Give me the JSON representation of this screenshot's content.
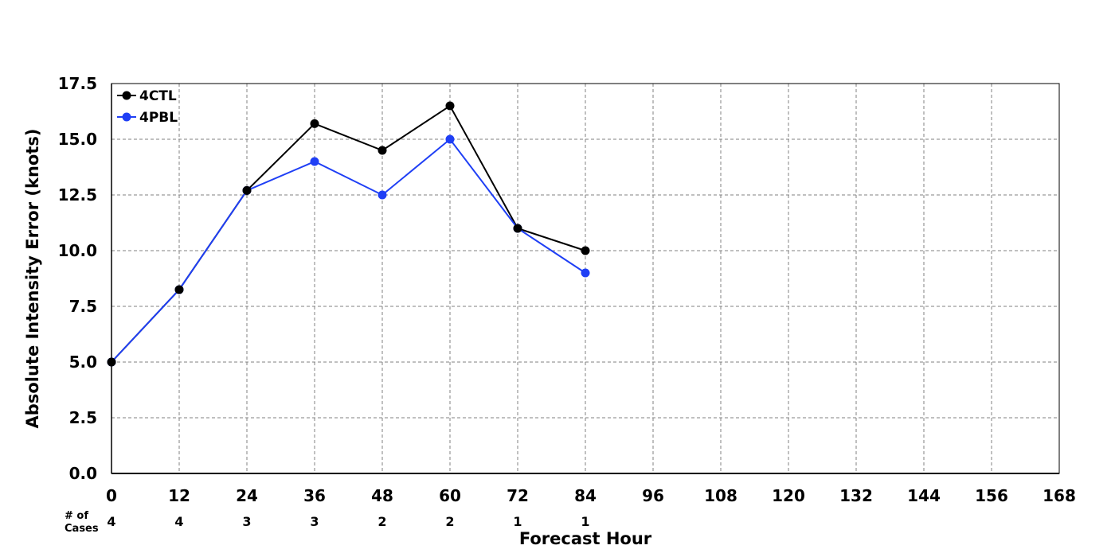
{
  "chart_data": {
    "type": "line",
    "xlabel": "Forecast Hour",
    "ylabel": "Absolute Intensity Error (knots)",
    "x_ticks": [
      0,
      12,
      24,
      36,
      48,
      60,
      72,
      84,
      96,
      108,
      120,
      132,
      144,
      156,
      168
    ],
    "y_ticks": [
      "0.0",
      "2.5",
      "5.0",
      "7.5",
      "10.0",
      "12.5",
      "15.0",
      "17.5"
    ],
    "xlim": [
      0,
      168
    ],
    "ylim": [
      0,
      17.5
    ],
    "grid": true,
    "legend_position": "top-left",
    "series": [
      {
        "name": "4CTL",
        "color": "#000000",
        "x": [
          0,
          12,
          24,
          36,
          48,
          60,
          72,
          84
        ],
        "y": [
          5.0,
          8.25,
          12.7,
          15.7,
          14.5,
          16.5,
          11.0,
          10.0
        ]
      },
      {
        "name": "4PBL",
        "color": "#1f3ff5",
        "x": [
          0,
          12,
          24,
          36,
          48,
          60,
          72,
          84
        ],
        "y": [
          5.0,
          8.25,
          12.7,
          14.0,
          12.5,
          15.0,
          11.0,
          9.0
        ]
      }
    ],
    "cases_label": "# of\nCases",
    "cases_label_lines": [
      "# of",
      "Cases"
    ],
    "cases_x": [
      0,
      12,
      24,
      36,
      48,
      60,
      72,
      84
    ],
    "cases": [
      "4",
      "4",
      "3",
      "3",
      "2",
      "2",
      "1",
      "1"
    ]
  }
}
